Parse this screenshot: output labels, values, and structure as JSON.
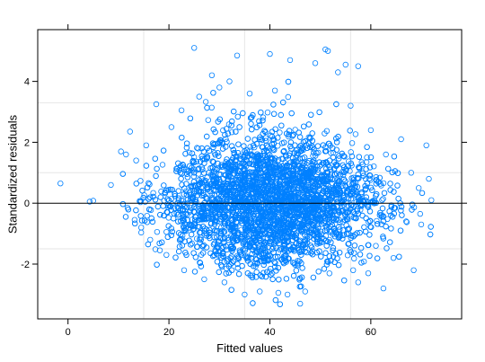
{
  "chart_data": {
    "type": "scatter",
    "title": "",
    "xlabel": "Fitted values",
    "ylabel": "Standardized residuals",
    "xlim": [
      -6,
      78
    ],
    "ylim": [
      -3.8,
      5.7
    ],
    "x_ticks": [
      0,
      20,
      40,
      60
    ],
    "y_ticks": [
      -2,
      0,
      2,
      4
    ],
    "x_tick_labels": [
      "0",
      "20",
      "40",
      "60"
    ],
    "y_tick_labels": [
      "-2",
      "0",
      "2",
      "4"
    ],
    "grid": true,
    "grid_x": [
      15,
      35,
      56
    ],
    "grid_y": [
      -1.5,
      1,
      3.3
    ],
    "reference_line_y": 0,
    "marker": "open-circle",
    "point_color": "#0080FF",
    "reference_line_color": "#000000",
    "grid_color": "#e6e6e6",
    "series": [
      {
        "points": [
          [
            -1.5,
            0.65
          ],
          [
            4.3,
            0.05
          ],
          [
            5.0,
            0.08
          ],
          [
            8.5,
            0.6
          ],
          [
            10.5,
            1.7
          ],
          [
            11.5,
            1.6
          ],
          [
            12.3,
            2.35
          ],
          [
            13.5,
            1.4
          ],
          [
            11.8,
            -0.15
          ],
          [
            13.2,
            -0.55
          ],
          [
            14.5,
            -0.8
          ],
          [
            15.5,
            1.9
          ],
          [
            16.3,
            -1.2
          ],
          [
            17.5,
            3.25
          ],
          [
            18.2,
            -1.55
          ],
          [
            19.5,
            -1.7
          ],
          [
            20.5,
            2.5
          ],
          [
            22.5,
            3.05
          ],
          [
            23.0,
            -2.2
          ],
          [
            25.0,
            5.1
          ],
          [
            26.0,
            3.5
          ],
          [
            27.0,
            -2.5
          ],
          [
            28.5,
            4.2
          ],
          [
            30.0,
            3.8
          ],
          [
            31.0,
            -2.6
          ],
          [
            32.0,
            4.0
          ],
          [
            33.5,
            4.85
          ],
          [
            35.0,
            -3.0
          ],
          [
            36.0,
            3.6
          ],
          [
            38.0,
            -2.9
          ],
          [
            40.0,
            4.9
          ],
          [
            41.0,
            3.7
          ],
          [
            43.5,
            -3.0
          ],
          [
            44.0,
            4.7
          ],
          [
            46.0,
            -3.3
          ],
          [
            47.0,
            -2.9
          ],
          [
            49.0,
            4.6
          ],
          [
            51.0,
            5.05
          ],
          [
            51.5,
            5.0
          ],
          [
            53.5,
            4.3
          ],
          [
            55.0,
            4.55
          ],
          [
            56.0,
            3.2
          ],
          [
            57.5,
            4.5
          ],
          [
            56.5,
            -2.2
          ],
          [
            57.5,
            -2.6
          ],
          [
            59.5,
            -2.3
          ],
          [
            60.0,
            2.4
          ],
          [
            61.0,
            -1.4
          ],
          [
            62.5,
            -2.8
          ],
          [
            63.0,
            1.6
          ],
          [
            64.5,
            -1.8
          ],
          [
            66.0,
            2.1
          ],
          [
            67.0,
            -0.6
          ],
          [
            68.0,
            1.0
          ],
          [
            68.5,
            -2.2
          ],
          [
            69.5,
            0.5
          ],
          [
            70.0,
            -0.7
          ],
          [
            71.0,
            1.9
          ],
          [
            71.5,
            0.8
          ],
          [
            72.0,
            0.1
          ]
        ],
        "cloud": {
          "count": 5200,
          "x_mean": 40,
          "x_sd": 10,
          "x_range": [
            9,
            72
          ],
          "y_sd_by_x": [
            [
              10,
              0.45
            ],
            [
              20,
              0.85
            ],
            [
              30,
              1.05
            ],
            [
              40,
              1.15
            ],
            [
              50,
              1.05
            ],
            [
              60,
              0.75
            ],
            [
              70,
              0.45
            ]
          ]
        }
      }
    ]
  }
}
